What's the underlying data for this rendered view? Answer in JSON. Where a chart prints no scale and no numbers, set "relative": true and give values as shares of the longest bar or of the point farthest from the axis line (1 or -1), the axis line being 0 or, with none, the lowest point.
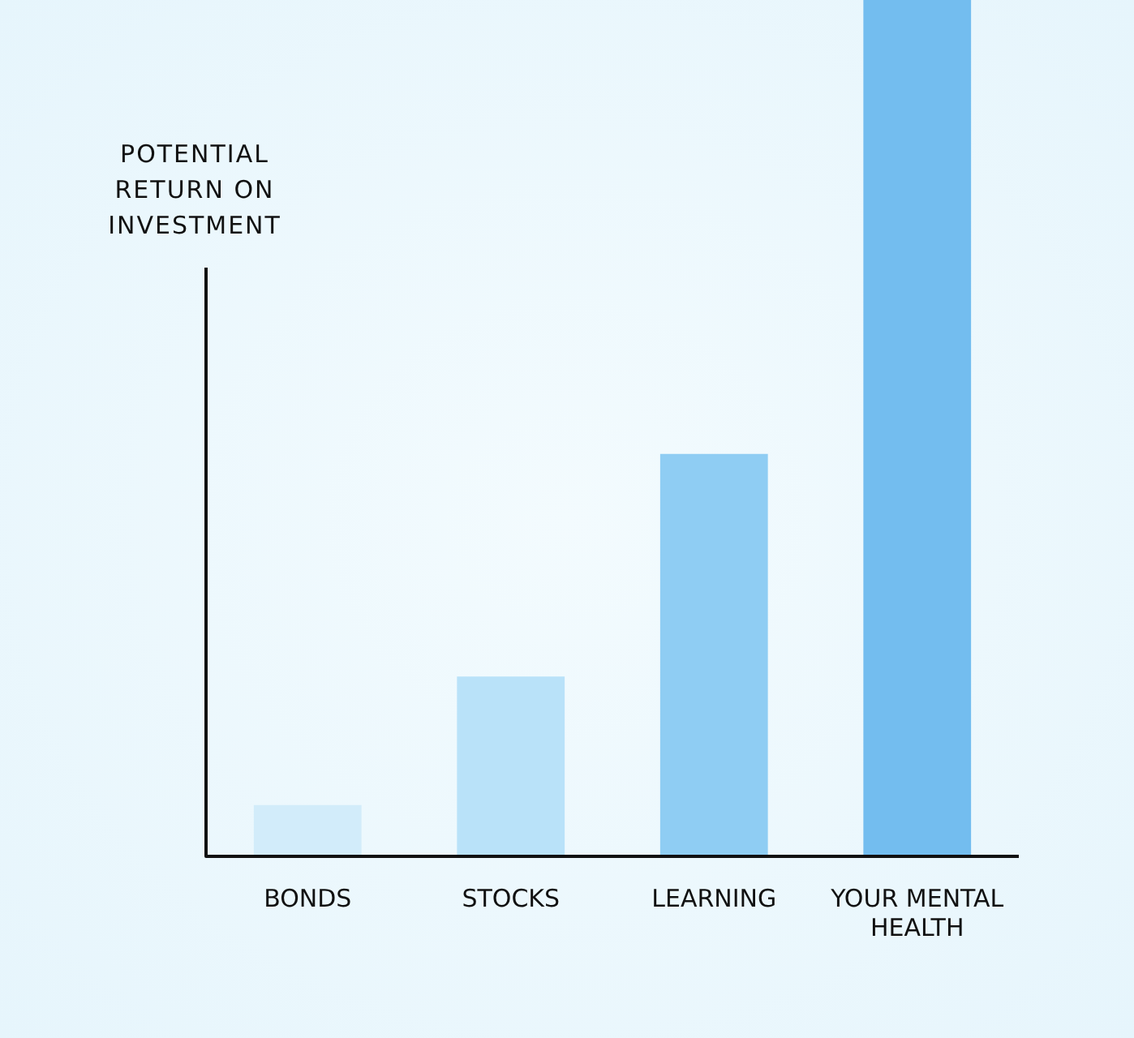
{
  "chart_data": {
    "type": "bar",
    "ylabel": "POTENTIAL RETURN ON INVESTMENT",
    "relative": true,
    "categories": [
      "BONDS",
      "STOCKS",
      "LEARNING",
      "YOUR MENTAL HEALTH"
    ],
    "values": [
      0.06,
      0.21,
      0.47,
      1
    ],
    "colors": [
      "#d2ecfa",
      "#b9e2f9",
      "#8fcdf3",
      "#73bdef"
    ]
  }
}
